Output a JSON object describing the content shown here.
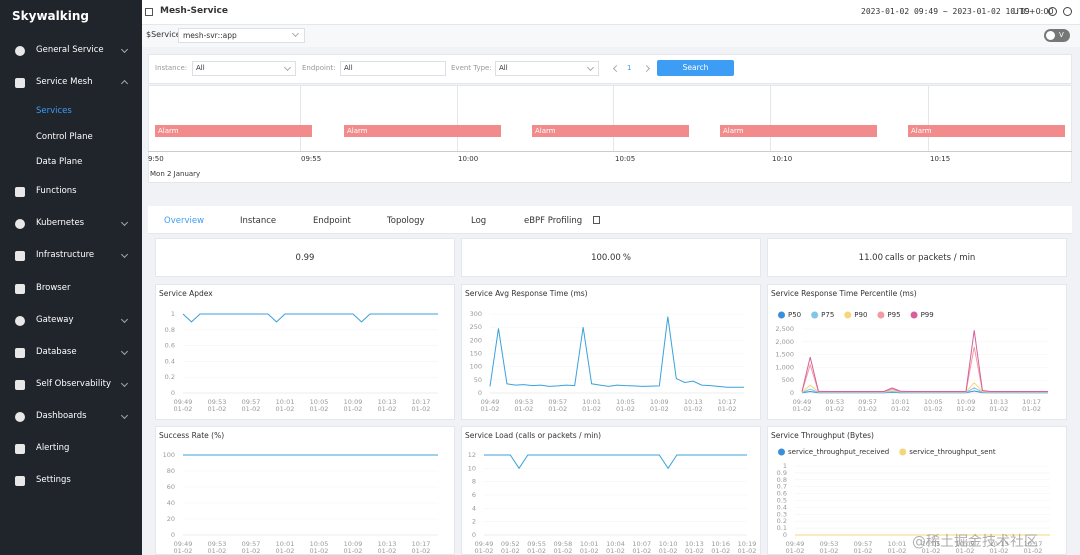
{
  "sidebar": {
    "logo": "Skywalking",
    "menu": [
      "General Service",
      "Service Mesh",
      "Functions",
      "Kubernetes",
      "Infrastructure",
      "Browser",
      "Gateway",
      "Database",
      "Self Observability",
      "Dashboards",
      "Alerting",
      "Settings"
    ],
    "submenu": [
      "Services",
      "Control Plane",
      "Data Plane"
    ]
  },
  "header": {
    "title": "Mesh-Service",
    "time_range": "2023-01-02 09:49 ~ 2023-01-02 10:19",
    "timezone": "UTC+0:00"
  },
  "selector": {
    "label": "$Service",
    "value": "mesh-svr::app",
    "toggle": "V"
  },
  "filters": {
    "instance_label": "Instance:",
    "instance": "All",
    "endpoint_label": "Endpoint:",
    "endpoint": "All",
    "event_type_label": "Event Type:",
    "event_type": "All",
    "page": "1",
    "button": "Search"
  },
  "timeline": {
    "ticks": [
      "9:50",
      "09:55",
      "10:00",
      "10:05",
      "10:10",
      "10:15"
    ],
    "date": "Mon 2 January",
    "events": [
      "Alarm",
      "Alarm",
      "Alarm",
      "Alarm",
      "Alarm"
    ]
  },
  "tabs": [
    "Overview",
    "Instance",
    "Endpoint",
    "Topology",
    "Log",
    "eBPF Profiling"
  ],
  "cards": [
    {
      "value": "0.99"
    },
    {
      "value": "100.00",
      "unit": "%"
    },
    {
      "value": "11.00",
      "unit": "calls or packets / min"
    }
  ],
  "watermark": "@稀土掘金技术社区",
  "chart_data": [
    {
      "type": "line",
      "title": "Service Apdex",
      "grid": true,
      "x_date": "01-02",
      "categories": [
        "09:49",
        null,
        null,
        null,
        "09:53",
        null,
        null,
        null,
        "09:57",
        null,
        null,
        null,
        "10:01",
        null,
        null,
        null,
        "10:05",
        null,
        null,
        null,
        "10:09",
        null,
        null,
        null,
        "10:13",
        null,
        null,
        null,
        "10:17",
        null,
        null
      ],
      "ylim": [
        0,
        1
      ],
      "yticks": [
        0,
        0.2,
        0.4,
        0.6,
        0.8,
        1
      ],
      "series": [
        {
          "color": "#3ba1db",
          "values": [
            1,
            0.9,
            1,
            1,
            1,
            1,
            1,
            1,
            1,
            1,
            1,
            0.9,
            1,
            1,
            1,
            1,
            1,
            1,
            1,
            1,
            1,
            0.9,
            1,
            1,
            1,
            1,
            1,
            1,
            1,
            1,
            1
          ]
        }
      ]
    },
    {
      "type": "line",
      "title": "Service Avg Response Time (ms)",
      "grid": true,
      "x_date": "01-02",
      "categories": [
        "09:49",
        null,
        null,
        null,
        "09:53",
        null,
        null,
        null,
        "09:57",
        null,
        null,
        null,
        "10:01",
        null,
        null,
        null,
        "10:05",
        null,
        null,
        null,
        "10:09",
        null,
        null,
        null,
        "10:13",
        null,
        null,
        null,
        "10:17",
        null,
        null
      ],
      "ylim": [
        0,
        300
      ],
      "yticks": [
        0,
        50,
        100,
        150,
        200,
        250,
        300
      ],
      "series": [
        {
          "color": "#3ba1db",
          "values": [
            25,
            245,
            35,
            30,
            32,
            28,
            30,
            25,
            27,
            30,
            28,
            250,
            35,
            30,
            25,
            30,
            28,
            27,
            25,
            26,
            27,
            290,
            55,
            40,
            45,
            30,
            28,
            25,
            22,
            22,
            22
          ]
        }
      ]
    },
    {
      "type": "line",
      "title": "Service Response Time Percentile (ms)",
      "grid": true,
      "legend": "top-left",
      "x_date": "01-02",
      "categories": [
        "09:49",
        null,
        null,
        null,
        "09:53",
        null,
        null,
        null,
        "09:57",
        null,
        null,
        null,
        "10:01",
        null,
        null,
        null,
        "10:05",
        null,
        null,
        null,
        "10:09",
        null,
        null,
        null,
        "10:13",
        null,
        null,
        null,
        "10:17",
        null,
        null
      ],
      "ylim": [
        0,
        2500
      ],
      "yticks": [
        0,
        500,
        {
          "value": 1000,
          "label": "1,000"
        },
        {
          "value": 1500,
          "label": "1,500"
        },
        {
          "value": 2000,
          "label": "2,000"
        },
        {
          "value": 2500,
          "label": "2,500"
        }
      ],
      "series": [
        {
          "name": "P50",
          "color": "#3a8fd9",
          "values": [
            10,
            60,
            12,
            10,
            10,
            10,
            10,
            10,
            10,
            10,
            10,
            30,
            12,
            10,
            10,
            10,
            10,
            10,
            10,
            10,
            10,
            80,
            14,
            10,
            10,
            10,
            10,
            10,
            10,
            10,
            10
          ]
        },
        {
          "name": "P75",
          "color": "#7fc6e8",
          "values": [
            20,
            150,
            25,
            20,
            20,
            20,
            20,
            20,
            20,
            20,
            20,
            60,
            25,
            20,
            20,
            20,
            20,
            20,
            20,
            20,
            20,
            200,
            30,
            20,
            20,
            20,
            20,
            20,
            20,
            20,
            20
          ]
        },
        {
          "name": "P90",
          "color": "#f5d77a",
          "values": [
            40,
            300,
            50,
            40,
            40,
            40,
            40,
            40,
            40,
            40,
            40,
            120,
            50,
            40,
            40,
            40,
            40,
            40,
            40,
            40,
            40,
            400,
            60,
            40,
            40,
            40,
            40,
            40,
            40,
            40,
            40
          ]
        },
        {
          "name": "P95",
          "color": "#f29ca0",
          "values": [
            50,
            1100,
            60,
            50,
            50,
            50,
            50,
            50,
            50,
            50,
            50,
            150,
            60,
            50,
            50,
            50,
            50,
            50,
            50,
            50,
            50,
            1800,
            80,
            50,
            50,
            50,
            50,
            50,
            50,
            50,
            50
          ]
        },
        {
          "name": "P99",
          "color": "#d6609b",
          "values": [
            60,
            1400,
            70,
            60,
            60,
            60,
            60,
            60,
            60,
            60,
            60,
            200,
            70,
            60,
            60,
            60,
            60,
            60,
            60,
            60,
            60,
            2450,
            100,
            60,
            60,
            60,
            60,
            60,
            60,
            60,
            60
          ]
        }
      ]
    },
    {
      "type": "line",
      "title": "Success Rate (%)",
      "grid": true,
      "x_date": "01-02",
      "categories": [
        "09:49",
        null,
        null,
        null,
        "09:53",
        null,
        null,
        null,
        "09:57",
        null,
        null,
        null,
        "10:01",
        null,
        null,
        null,
        "10:05",
        null,
        null,
        null,
        "10:09",
        null,
        null,
        null,
        "10:13",
        null,
        null,
        null,
        "10:17",
        null,
        null
      ],
      "ylim": [
        0,
        100
      ],
      "yticks": [
        0,
        20,
        40,
        60,
        80,
        100
      ],
      "series": [
        {
          "color": "#3ba1db",
          "values": [
            100,
            100,
            100,
            100,
            100,
            100,
            100,
            100,
            100,
            100,
            100,
            100,
            100,
            100,
            100,
            100,
            100,
            100,
            100,
            100,
            100,
            100,
            100,
            100,
            100,
            100,
            100,
            100,
            100,
            100,
            100
          ]
        }
      ]
    },
    {
      "type": "line",
      "title": "Service Load (calls or packets / min)",
      "grid": true,
      "x_date": "01-02",
      "categories": [
        "09:49",
        null,
        null,
        "09:52",
        null,
        null,
        "09:55",
        null,
        null,
        "09:58",
        null,
        null,
        "10:01",
        null,
        null,
        "10:04",
        null,
        null,
        "10:07",
        null,
        null,
        "10:10",
        null,
        null,
        "10:13",
        null,
        null,
        "10:16",
        null,
        null,
        "10:19"
      ],
      "ylim": [
        0,
        12
      ],
      "yticks": [
        0,
        2,
        4,
        6,
        8,
        10,
        12
      ],
      "series": [
        {
          "color": "#3ba1db",
          "values": [
            12,
            12,
            12,
            12,
            10,
            12,
            12,
            12,
            12,
            12,
            12,
            12,
            12,
            12,
            12,
            12,
            12,
            12,
            12,
            12,
            12,
            10,
            12,
            12,
            12,
            12,
            12,
            12,
            12,
            12,
            12
          ]
        }
      ]
    },
    {
      "type": "line",
      "title": "Service Throughput (Bytes)",
      "grid": true,
      "legend": "top-left",
      "x_date": "01-02",
      "categories": [
        "09:49",
        null,
        null,
        null,
        "09:53",
        null,
        null,
        null,
        "09:57",
        null,
        null,
        null,
        "10:01",
        null,
        null,
        null,
        "10:05",
        null,
        null,
        null,
        "10:09",
        null,
        null,
        null,
        "10:13",
        null,
        null,
        null,
        "10:17",
        null,
        null
      ],
      "ylim": [
        0,
        1
      ],
      "yticks": [
        0,
        0.1,
        0.2,
        0.3,
        0.4,
        0.5,
        0.6,
        0.7,
        0.8,
        0.9,
        1
      ],
      "series": [
        {
          "name": "service_throughput_received",
          "color": "#3a8fd9",
          "values": [
            0,
            0,
            0,
            0,
            0,
            0,
            0,
            0,
            0,
            0,
            0,
            0,
            0,
            0,
            0,
            0,
            0,
            0,
            0,
            0,
            0,
            0,
            0,
            0,
            0,
            0,
            0,
            0,
            0,
            0,
            0
          ]
        },
        {
          "name": "service_throughput_sent",
          "color": "#f5d77a",
          "values": [
            0,
            0,
            0,
            0,
            0,
            0,
            0,
            0,
            0,
            0,
            0,
            0,
            0,
            0,
            0,
            0,
            0,
            0,
            0,
            0,
            0,
            0,
            0,
            0,
            0,
            0,
            0,
            0,
            0,
            0,
            0
          ]
        }
      ]
    }
  ]
}
